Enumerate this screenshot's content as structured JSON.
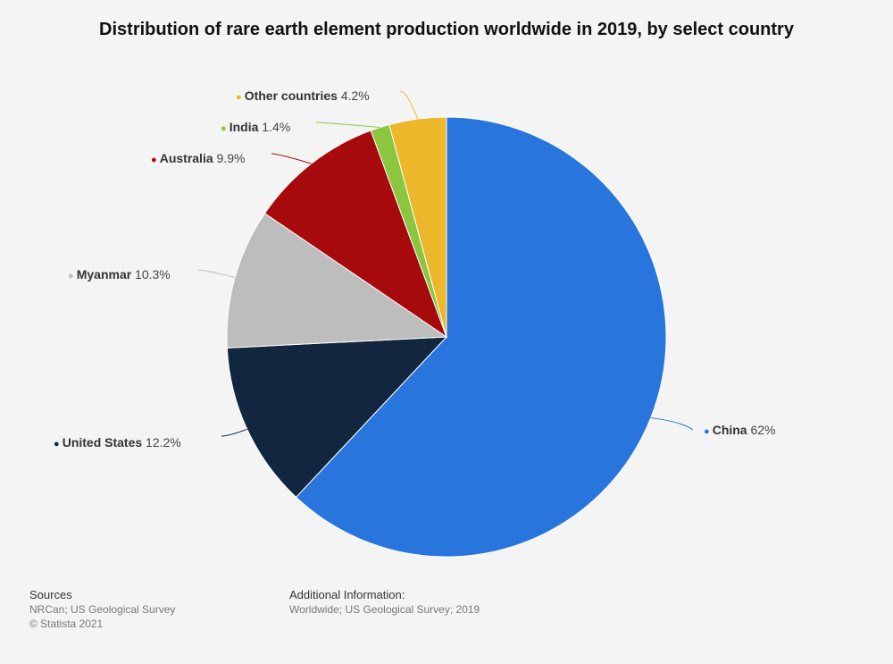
{
  "chart_data": {
    "type": "pie",
    "title": "Distribution of rare earth element production worldwide in 2019, by select country",
    "slices": [
      {
        "name": "China",
        "value": 62,
        "label": "62%",
        "color": "#2876dd"
      },
      {
        "name": "United States",
        "value": 12.2,
        "label": "12.2%",
        "color": "#12263f"
      },
      {
        "name": "Myanmar",
        "value": 10.3,
        "label": "10.3%",
        "color": "#bdbdbd"
      },
      {
        "name": "Australia",
        "value": 9.9,
        "label": "9.9%",
        "color": "#a60a0d"
      },
      {
        "name": "India",
        "value": 1.4,
        "label": "1.4%",
        "color": "#8cc63e"
      },
      {
        "name": "Other countries",
        "value": 4.2,
        "label": "4.2%",
        "color": "#ecb72a"
      }
    ]
  },
  "footer": {
    "sources_heading": "Sources",
    "sources_line1": "NRCan; US Geological Survey",
    "sources_line2": "© Statista 2021",
    "additional_heading": "Additional Information:",
    "additional_line1": "Worldwide; US Geological Survey; 2019"
  }
}
